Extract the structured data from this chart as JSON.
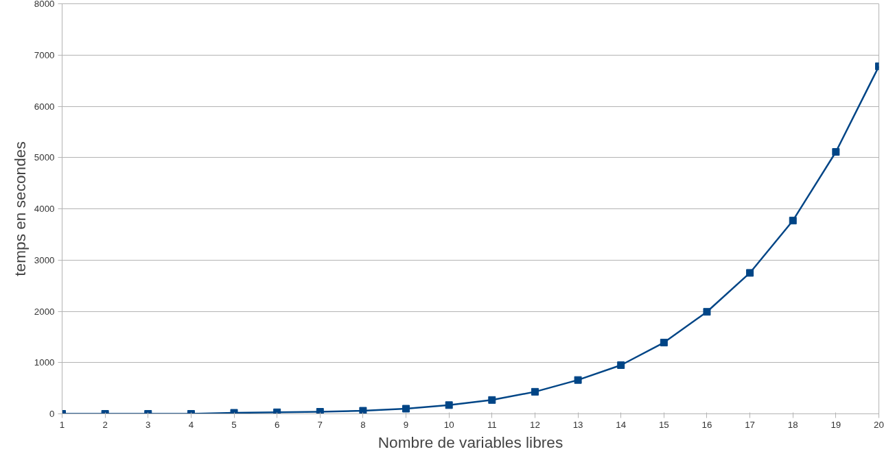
{
  "chart_data": {
    "type": "line",
    "xlabel": "Nombre de variables libres",
    "ylabel": "temps en secondes",
    "x": [
      1,
      2,
      3,
      4,
      5,
      6,
      7,
      8,
      9,
      10,
      11,
      12,
      13,
      14,
      15,
      16,
      17,
      18,
      19,
      20
    ],
    "series": [
      {
        "color": "#004586",
        "values": [
          0,
          0,
          0,
          0,
          20,
          30,
          40,
          60,
          100,
          170,
          270,
          430,
          660,
          950,
          1390,
          1990,
          2750,
          3770,
          5110,
          6780
        ]
      }
    ],
    "xlim": [
      1,
      20
    ],
    "xticks": [
      1,
      2,
      3,
      4,
      5,
      6,
      7,
      8,
      9,
      10,
      11,
      12,
      13,
      14,
      15,
      16,
      17,
      18,
      19,
      20
    ],
    "ylim": [
      0,
      8000
    ],
    "yticks": [
      0,
      1000,
      2000,
      3000,
      4000,
      5000,
      6000,
      7000,
      8000
    ],
    "grid": "y",
    "marker": "square",
    "line_style": "solid"
  }
}
